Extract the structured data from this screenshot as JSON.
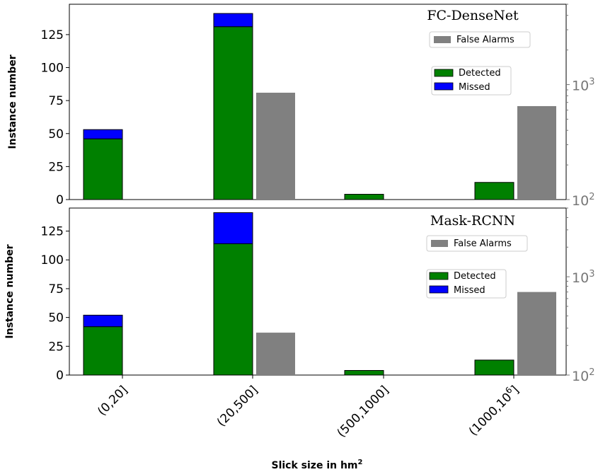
{
  "figure": {
    "xlabel": "Slick size in hm",
    "xlabel_sup": "2"
  },
  "chart_data": [
    {
      "type": "bar",
      "title": "FC-DenseNet",
      "ylabel": "Instance number",
      "categories": [
        "(0,20]",
        "(20,500]",
        "(500,1000]",
        "(1000,10"
      ],
      "categories_sup": [
        "",
        "",
        "",
        "6"
      ],
      "categories_suffix": [
        "",
        "",
        "",
        "]"
      ],
      "stacked": true,
      "series": [
        {
          "name": "Detected",
          "values": [
            46,
            131,
            4,
            13
          ],
          "color": "#008000",
          "axis": "left"
        },
        {
          "name": "Missed",
          "values": [
            7,
            10,
            0,
            0
          ],
          "color": "#0000ff",
          "axis": "left"
        },
        {
          "name": "False Alarms",
          "values": [
            0,
            850,
            0,
            650
          ],
          "color": "#808080",
          "axis": "right"
        }
      ],
      "ylim": [
        0,
        148
      ],
      "yticks": [
        "0",
        "25",
        "50",
        "75",
        "100",
        "125"
      ],
      "y2lim": [
        100,
        5000
      ],
      "y2scale": "log",
      "y2ticks": [
        "10",
        "10"
      ],
      "y2ticks_exp": [
        "2",
        "3"
      ],
      "legend": [
        "top-right"
      ]
    },
    {
      "type": "bar",
      "title": "Mask-RCNN",
      "ylabel": "Instance number",
      "categories": [
        "(0,20]",
        "(20,500]",
        "(500,1000]",
        "(1000,10"
      ],
      "categories_sup": [
        "",
        "",
        "",
        "6"
      ],
      "categories_suffix": [
        "",
        "",
        "",
        "]"
      ],
      "stacked": true,
      "series": [
        {
          "name": "Detected",
          "values": [
            42,
            114,
            4,
            13
          ],
          "color": "#008000",
          "axis": "left"
        },
        {
          "name": "Missed",
          "values": [
            10,
            27,
            0,
            0
          ],
          "color": "#0000ff",
          "axis": "left"
        },
        {
          "name": "False Alarms",
          "values": [
            0,
            270,
            0,
            700
          ],
          "color": "#808080",
          "axis": "right"
        }
      ],
      "ylim": [
        0,
        145
      ],
      "yticks": [
        "0",
        "25",
        "50",
        "75",
        "100",
        "125"
      ],
      "y2lim": [
        100,
        5000
      ],
      "y2scale": "log",
      "y2ticks": [
        "10",
        "10"
      ],
      "y2ticks_exp": [
        "2",
        "3"
      ],
      "legend": [
        "top-right"
      ]
    }
  ]
}
